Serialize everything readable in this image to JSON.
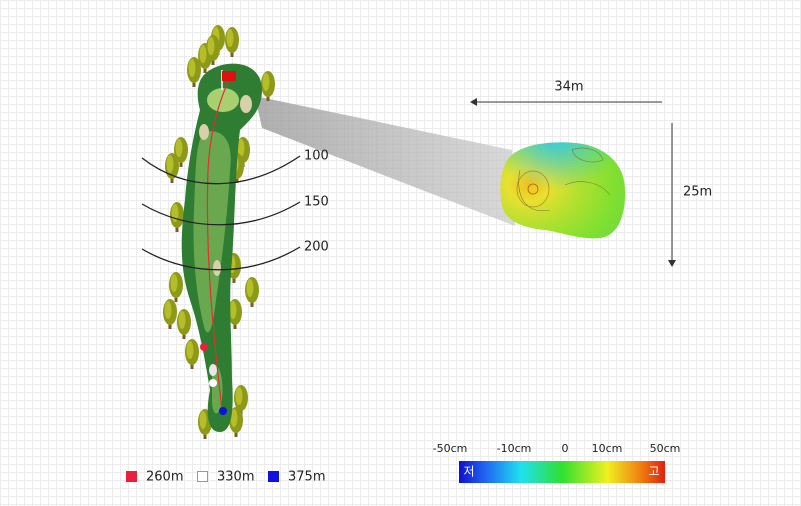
{
  "distance_arcs": [
    "100",
    "150",
    "200"
  ],
  "green_size": {
    "width": "34m",
    "depth": "25m"
  },
  "elevation_legend": {
    "ticks": [
      "-50cm",
      "-10cm",
      "0",
      "10cm",
      "50cm"
    ],
    "low": "저",
    "high": "고"
  },
  "tee_legend": [
    {
      "label": "260m"
    },
    {
      "label": "330m"
    },
    {
      "label": "375m"
    }
  ]
}
